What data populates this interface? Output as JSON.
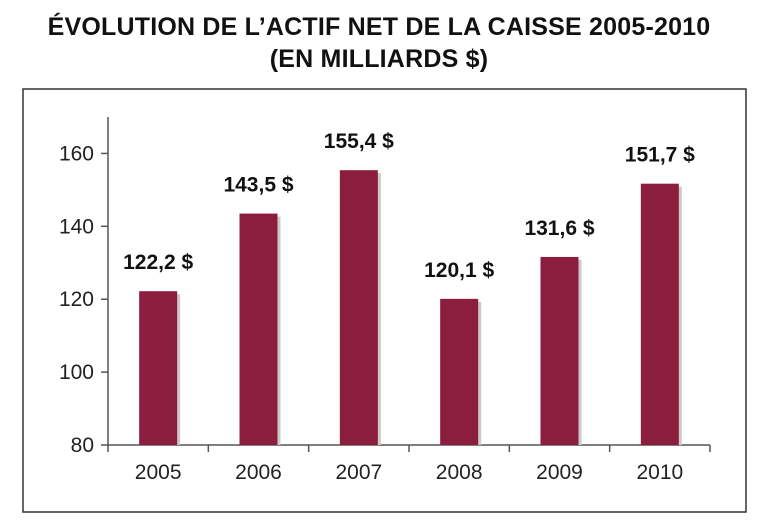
{
  "chart_data": {
    "type": "bar",
    "title_line1": "ÉVOLUTION DE L’ACTIF NET DE LA CAISSE 2005-2010",
    "title_line2": "(EN MILLIARDS $)",
    "categories": [
      "2005",
      "2006",
      "2007",
      "2008",
      "2009",
      "2010"
    ],
    "values": [
      122.2,
      143.5,
      155.4,
      120.1,
      131.6,
      151.7
    ],
    "data_labels": [
      "122,2 $",
      "143,5 $",
      "155,4 $",
      "120,1 $",
      "131,6 $",
      "151,7 $"
    ],
    "ylim": [
      80,
      170
    ],
    "yticks": [
      80,
      100,
      120,
      140,
      160
    ],
    "bar_color": "#8b1d3f",
    "grid": false,
    "legend": "none"
  }
}
